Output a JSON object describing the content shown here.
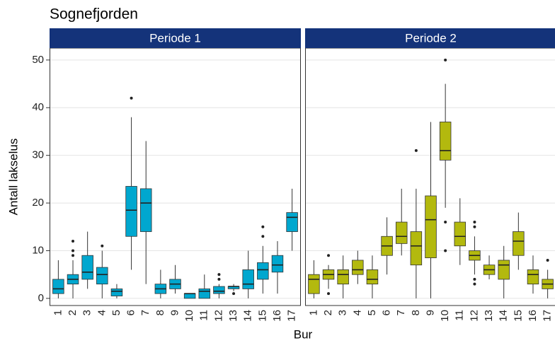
{
  "chart_data": {
    "type": "box",
    "title": "Sognefjorden",
    "x_label": "Bur",
    "y_label": "Antall lakselus",
    "ylim": [
      -1.5,
      52.5
    ],
    "yticks": [
      0,
      10,
      20,
      30,
      40,
      50
    ],
    "grid": true,
    "facets": [
      {
        "name": "Periode 1",
        "color": "#00a7cf",
        "categories": [
          "1",
          "2",
          "3",
          "4",
          "5",
          "6",
          "7",
          "8",
          "9",
          "10",
          "11",
          "12",
          "13",
          "14",
          "15",
          "16",
          "17"
        ],
        "boxes": [
          {
            "min": 0,
            "q1": 1,
            "median": 2,
            "q3": 4,
            "max": 8,
            "outliers": []
          },
          {
            "min": 0,
            "q1": 3,
            "median": 4,
            "q3": 5,
            "max": 8,
            "outliers": [
              9,
              10,
              12
            ]
          },
          {
            "min": 2,
            "q1": 4,
            "median": 5.5,
            "q3": 9,
            "max": 14,
            "outliers": []
          },
          {
            "min": 0,
            "q1": 3,
            "median": 5,
            "q3": 6.5,
            "max": 10,
            "outliers": [
              11
            ]
          },
          {
            "min": 0,
            "q1": 0.5,
            "median": 1.5,
            "q3": 2,
            "max": 3,
            "outliers": []
          },
          {
            "min": 6,
            "q1": 13,
            "median": 18.5,
            "q3": 23.5,
            "max": 38,
            "outliers": [
              42
            ]
          },
          {
            "min": 3,
            "q1": 14,
            "median": 20,
            "q3": 23,
            "max": 33,
            "outliers": []
          },
          {
            "min": 0,
            "q1": 1,
            "median": 2,
            "q3": 3,
            "max": 6,
            "outliers": []
          },
          {
            "min": 1,
            "q1": 2,
            "median": 3,
            "q3": 4,
            "max": 7,
            "outliers": []
          },
          {
            "min": 0,
            "q1": 0,
            "median": 1,
            "q3": 1,
            "max": 1,
            "outliers": []
          },
          {
            "min": 0,
            "q1": 0,
            "median": 1.5,
            "q3": 2,
            "max": 5,
            "outliers": []
          },
          {
            "min": 0,
            "q1": 1,
            "median": 1.5,
            "q3": 2.5,
            "max": 3,
            "outliers": [
              4,
              5
            ]
          },
          {
            "min": 1.5,
            "q1": 2,
            "median": 2.5,
            "q3": 2.5,
            "max": 3,
            "outliers": [
              1
            ]
          },
          {
            "min": 0,
            "q1": 2,
            "median": 3,
            "q3": 6,
            "max": 10,
            "outliers": []
          },
          {
            "min": 1,
            "q1": 4,
            "median": 6,
            "q3": 7.5,
            "max": 11,
            "outliers": [
              13,
              15
            ]
          },
          {
            "min": 1,
            "q1": 5.5,
            "median": 7,
            "q3": 9,
            "max": 12,
            "outliers": []
          },
          {
            "min": 10,
            "q1": 14,
            "median": 17,
            "q3": 18,
            "max": 23,
            "outliers": []
          }
        ]
      },
      {
        "name": "Periode 2",
        "color": "#b3b90e",
        "categories": [
          "1",
          "2",
          "3",
          "4",
          "5",
          "6",
          "7",
          "8",
          "9",
          "10",
          "11",
          "12",
          "13",
          "14",
          "15",
          "16",
          "17"
        ],
        "boxes": [
          {
            "min": 0,
            "q1": 1,
            "median": 4,
            "q3": 5,
            "max": 8,
            "outliers": []
          },
          {
            "min": 2,
            "q1": 4,
            "median": 5,
            "q3": 6,
            "max": 7,
            "outliers": [
              9,
              1
            ]
          },
          {
            "min": 0,
            "q1": 3,
            "median": 5,
            "q3": 6,
            "max": 9,
            "outliers": []
          },
          {
            "min": 3,
            "q1": 5,
            "median": 6,
            "q3": 8,
            "max": 10,
            "outliers": []
          },
          {
            "min": 0,
            "q1": 3,
            "median": 4,
            "q3": 6,
            "max": 9,
            "outliers": []
          },
          {
            "min": 5,
            "q1": 9,
            "median": 11,
            "q3": 13,
            "max": 17,
            "outliers": []
          },
          {
            "min": 9,
            "q1": 11.5,
            "median": 13,
            "q3": 16,
            "max": 23,
            "outliers": []
          },
          {
            "min": 0,
            "q1": 7,
            "median": 11,
            "q3": 14,
            "max": 23,
            "outliers": [
              31
            ]
          },
          {
            "min": 0,
            "q1": 8.5,
            "median": 16.5,
            "q3": 21.5,
            "max": 37,
            "outliers": []
          },
          {
            "min": 19,
            "q1": 29,
            "median": 31,
            "q3": 37,
            "max": 45,
            "outliers": [
              50,
              16,
              10
            ]
          },
          {
            "min": 7,
            "q1": 11,
            "median": 13,
            "q3": 16,
            "max": 21,
            "outliers": []
          },
          {
            "min": 5,
            "q1": 8,
            "median": 9,
            "q3": 10,
            "max": 13,
            "outliers": [
              15,
              16,
              4,
              3
            ]
          },
          {
            "min": 4,
            "q1": 5,
            "median": 6,
            "q3": 7,
            "max": 9,
            "outliers": []
          },
          {
            "min": 0,
            "q1": 4,
            "median": 7,
            "q3": 8,
            "max": 11,
            "outliers": []
          },
          {
            "min": 6,
            "q1": 9,
            "median": 12,
            "q3": 14,
            "max": 18,
            "outliers": []
          },
          {
            "min": 1,
            "q1": 3,
            "median": 5,
            "q3": 6,
            "max": 9,
            "outliers": []
          },
          {
            "min": 0,
            "q1": 2,
            "median": 3,
            "q3": 4,
            "max": 6,
            "outliers": [
              8
            ]
          }
        ]
      }
    ]
  }
}
